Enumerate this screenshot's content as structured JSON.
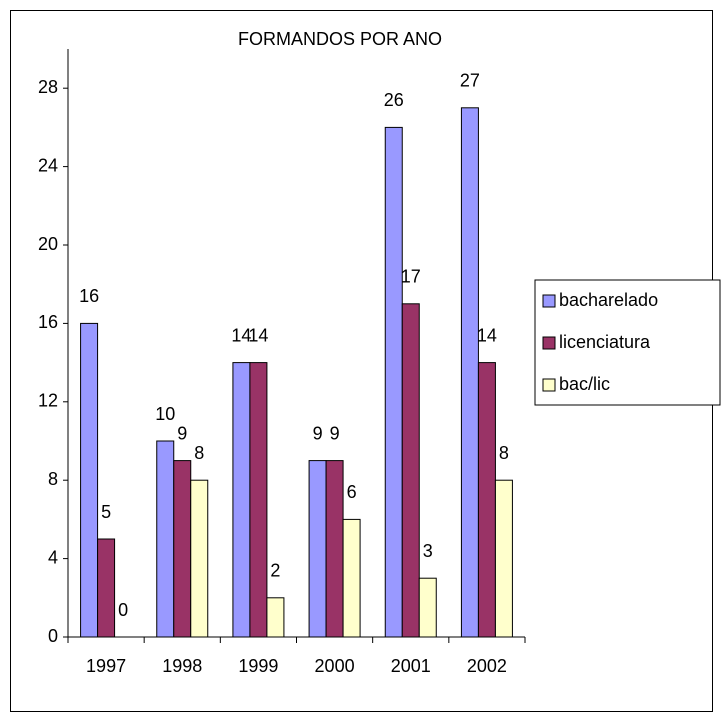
{
  "chart_data": {
    "type": "bar",
    "title": "FORMANDOS POR ANO",
    "categories": [
      "1997",
      "1998",
      "1999",
      "2000",
      "2001",
      "2002"
    ],
    "series": [
      {
        "name": "bacharelado",
        "color": "#9999ff",
        "values": [
          16,
          10,
          14,
          9,
          26,
          27
        ]
      },
      {
        "name": "licenciatura",
        "color": "#993366",
        "values": [
          5,
          9,
          14,
          9,
          17,
          14
        ]
      },
      {
        "name": "bac/lic",
        "color": "#ffffcc",
        "values": [
          0,
          8,
          2,
          6,
          3,
          8
        ]
      }
    ],
    "ylim": [
      0,
      30
    ],
    "yticks": [
      0,
      4,
      8,
      12,
      16,
      20,
      24,
      28
    ],
    "grid": false,
    "legend": "right"
  }
}
